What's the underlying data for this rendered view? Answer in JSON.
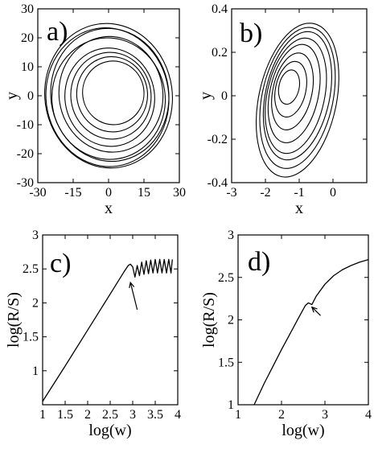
{
  "chart_data": [
    {
      "id": "a",
      "type": "line",
      "panel_label": "a)",
      "xlabel": "x",
      "ylabel": "y",
      "xlim": [
        -30,
        30
      ],
      "ylim": [
        -30,
        30
      ],
      "xticks": [
        -30,
        -15,
        0,
        15,
        30
      ],
      "yticks": [
        -30,
        -20,
        -10,
        0,
        10,
        20,
        30
      ],
      "series": [
        {
          "kind": "attractor",
          "loops": [
            {
              "cx": 0,
              "cy": 0,
              "rx": 27,
              "ry": 25
            },
            {
              "cx": -0.5,
              "cy": -0.5,
              "rx": 26,
              "ry": 24
            },
            {
              "cx": 0.5,
              "cy": 0.3,
              "rx": 25,
              "ry": 23
            },
            {
              "cx": 0.0,
              "cy": -1.0,
              "rx": 24,
              "ry": 21
            },
            {
              "cx": 1.0,
              "cy": 0.5,
              "rx": 22,
              "ry": 20
            },
            {
              "cx": 0.5,
              "cy": -0.5,
              "rx": 19,
              "ry": 17
            },
            {
              "cx": 1.0,
              "cy": 0.0,
              "rx": 17,
              "ry": 15
            },
            {
              "cx": 1.5,
              "cy": 0.5,
              "rx": 15,
              "ry": 13
            },
            {
              "cx": 2.0,
              "cy": 1.0,
              "rx": 13,
              "ry": 11
            }
          ]
        }
      ]
    },
    {
      "id": "b",
      "type": "line",
      "panel_label": "b)",
      "xlabel": "x",
      "ylabel": "y",
      "xlim": [
        -3,
        1
      ],
      "ylim": [
        -0.4,
        0.4
      ],
      "xticks": [
        -3,
        -2,
        -1,
        0
      ],
      "yticks": [
        -0.4,
        -0.2,
        0,
        0.2,
        0.4
      ],
      "series": [
        {
          "kind": "attractor",
          "loops": [
            {
              "cx": -1.05,
              "cy": -0.02,
              "rx": 1.15,
              "ry": 0.36
            },
            {
              "cx": -1.05,
              "cy": -0.01,
              "rx": 1.05,
              "ry": 0.33
            },
            {
              "cx": -1.05,
              "cy": 0.0,
              "rx": 0.95,
              "ry": 0.3
            },
            {
              "cx": -1.1,
              "cy": 0.0,
              "rx": 0.85,
              "ry": 0.27
            },
            {
              "cx": -1.15,
              "cy": 0.01,
              "rx": 0.72,
              "ry": 0.23
            },
            {
              "cx": -1.2,
              "cy": 0.02,
              "rx": 0.58,
              "ry": 0.18
            },
            {
              "cx": -1.25,
              "cy": 0.03,
              "rx": 0.45,
              "ry": 0.13
            },
            {
              "cx": -1.3,
              "cy": 0.04,
              "rx": 0.3,
              "ry": 0.08
            }
          ]
        }
      ]
    },
    {
      "id": "c",
      "type": "line",
      "panel_label": "c)",
      "xlabel": "log(w)",
      "ylabel": "log(R/S)",
      "xlim": [
        1,
        4
      ],
      "ylim": [
        0.5,
        3
      ],
      "xticks": [
        1,
        1.5,
        2,
        2.5,
        3,
        3.5,
        4
      ],
      "yticks": [
        1,
        1.5,
        2,
        2.5,
        3
      ],
      "series": [
        {
          "x": [
            1.0,
            1.5,
            2.0,
            2.5,
            2.8,
            2.9,
            2.95,
            3.0,
            3.05,
            3.1,
            3.15,
            3.2,
            3.25,
            3.3,
            3.35,
            3.4,
            3.45,
            3.5,
            3.55,
            3.6,
            3.65,
            3.7,
            3.75,
            3.8,
            3.85,
            3.88
          ],
          "y": [
            0.55,
            1.07,
            1.6,
            2.13,
            2.45,
            2.55,
            2.57,
            2.53,
            2.38,
            2.55,
            2.4,
            2.6,
            2.42,
            2.62,
            2.43,
            2.63,
            2.44,
            2.64,
            2.44,
            2.64,
            2.44,
            2.64,
            2.44,
            2.64,
            2.44,
            2.64
          ]
        }
      ],
      "annotations": [
        {
          "type": "arrow",
          "from": [
            3.1,
            1.9
          ],
          "to": [
            2.95,
            2.3
          ]
        }
      ]
    },
    {
      "id": "d",
      "type": "line",
      "panel_label": "d)",
      "xlabel": "log(w)",
      "ylabel": "log(R/S)",
      "xlim": [
        1,
        4
      ],
      "ylim": [
        1,
        3
      ],
      "xticks": [
        1,
        2,
        3,
        4
      ],
      "yticks": [
        1,
        1.5,
        2,
        2.5,
        3
      ],
      "series": [
        {
          "x": [
            1.37,
            1.6,
            1.8,
            2.0,
            2.2,
            2.4,
            2.55,
            2.62,
            2.7,
            2.8,
            3.0,
            3.2,
            3.4,
            3.6,
            3.8,
            4.0
          ],
          "y": [
            1.0,
            1.25,
            1.45,
            1.65,
            1.84,
            2.03,
            2.17,
            2.2,
            2.18,
            2.28,
            2.42,
            2.52,
            2.59,
            2.64,
            2.68,
            2.71
          ]
        }
      ],
      "annotations": [
        {
          "type": "arrow",
          "from": [
            2.9,
            2.05
          ],
          "to": [
            2.7,
            2.15
          ]
        }
      ]
    }
  ]
}
